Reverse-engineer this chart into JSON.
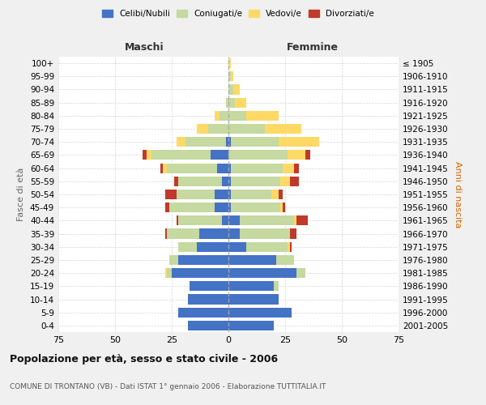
{
  "age_groups": [
    "100+",
    "95-99",
    "90-94",
    "85-89",
    "80-84",
    "75-79",
    "70-74",
    "65-69",
    "60-64",
    "55-59",
    "50-54",
    "45-49",
    "40-44",
    "35-39",
    "30-34",
    "25-29",
    "20-24",
    "15-19",
    "10-14",
    "5-9",
    "0-4"
  ],
  "birth_years": [
    "≤ 1905",
    "1906-1910",
    "1911-1915",
    "1916-1920",
    "1921-1925",
    "1926-1930",
    "1931-1935",
    "1936-1940",
    "1941-1945",
    "1946-1950",
    "1951-1955",
    "1956-1960",
    "1961-1965",
    "1966-1970",
    "1971-1975",
    "1976-1980",
    "1981-1985",
    "1986-1990",
    "1991-1995",
    "1996-2000",
    "2001-2005"
  ],
  "male": {
    "celibi": [
      0,
      0,
      0,
      0,
      0,
      0,
      1,
      8,
      5,
      3,
      6,
      6,
      3,
      13,
      14,
      22,
      25,
      17,
      18,
      22,
      18
    ],
    "coniugati": [
      0,
      0,
      0,
      1,
      4,
      9,
      18,
      26,
      22,
      19,
      17,
      20,
      19,
      14,
      8,
      4,
      2,
      0,
      0,
      0,
      0
    ],
    "vedovi": [
      0,
      0,
      0,
      0,
      2,
      5,
      4,
      2,
      2,
      0,
      0,
      0,
      0,
      0,
      0,
      0,
      1,
      0,
      0,
      0,
      0
    ],
    "divorziati": [
      0,
      0,
      0,
      0,
      0,
      0,
      0,
      2,
      1,
      2,
      5,
      2,
      1,
      1,
      0,
      0,
      0,
      0,
      0,
      0,
      0
    ]
  },
  "female": {
    "nubili": [
      0,
      0,
      0,
      0,
      0,
      0,
      1,
      0,
      1,
      1,
      1,
      1,
      5,
      5,
      8,
      21,
      30,
      20,
      22,
      28,
      20
    ],
    "coniugate": [
      0,
      1,
      2,
      3,
      8,
      16,
      21,
      26,
      23,
      22,
      18,
      22,
      24,
      22,
      18,
      8,
      4,
      2,
      0,
      0,
      0
    ],
    "vedove": [
      1,
      1,
      3,
      5,
      14,
      16,
      18,
      8,
      5,
      4,
      3,
      1,
      1,
      0,
      1,
      0,
      0,
      0,
      0,
      0,
      0
    ],
    "divorziate": [
      0,
      0,
      0,
      0,
      0,
      0,
      0,
      2,
      2,
      4,
      2,
      1,
      5,
      3,
      1,
      0,
      0,
      0,
      0,
      0,
      0
    ]
  },
  "colors": {
    "celibi": "#4472c4",
    "coniugati": "#c5d9a0",
    "vedovi": "#ffd966",
    "divorziati": "#c0392b"
  },
  "xlim": 75,
  "title": "Popolazione per età, sesso e stato civile - 2006",
  "subtitle": "COMUNE DI TRONTANO (VB) - Dati ISTAT 1° gennaio 2006 - Elaborazione TUTTITALIA.IT",
  "ylabel_left": "Fasce di età",
  "ylabel_right": "Anni di nascita",
  "xlabel_male": "Maschi",
  "xlabel_female": "Femmine",
  "bg_color": "#f0f0f0",
  "plot_bg": "#ffffff"
}
